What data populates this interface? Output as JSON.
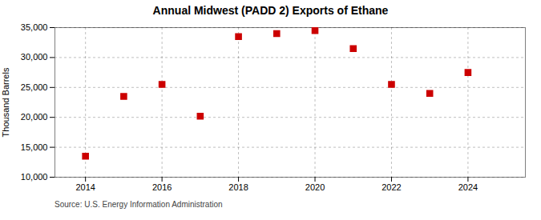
{
  "chart_data": {
    "type": "scatter",
    "title": "Annual Midwest (PADD 2) Exports of Ethane",
    "ylabel": "Thousand Barrels",
    "source": "Source: U.S. Energy Information Administration",
    "x": [
      2014,
      2015,
      2016,
      2017,
      2018,
      2019,
      2020,
      2021,
      2022,
      2023,
      2024
    ],
    "values": [
      13500,
      23500,
      25500,
      20200,
      33500,
      34000,
      34500,
      31500,
      25500,
      24000,
      27500
    ],
    "xlim": [
      2013.2,
      2025.5
    ],
    "xticks": [
      2014,
      2016,
      2018,
      2020,
      2022,
      2024
    ],
    "ylim": [
      10000,
      35000
    ],
    "yticks": [
      {
        "value": 10000,
        "label": "10,000"
      },
      {
        "value": 15000,
        "label": "15,000"
      },
      {
        "value": 20000,
        "label": "20,000"
      },
      {
        "value": 25000,
        "label": "25,000"
      },
      {
        "value": 30000,
        "label": "30,000"
      },
      {
        "value": 35000,
        "label": "35,000"
      }
    ],
    "color": "#cc0000",
    "marker": "square",
    "grid": true
  }
}
